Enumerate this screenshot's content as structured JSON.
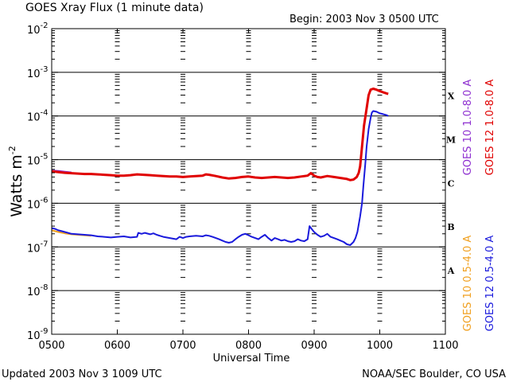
{
  "header": {
    "title": "GOES Xray Flux (1 minute data)",
    "begin": "Begin: 2003 Nov 3 0500 UTC"
  },
  "footer": {
    "updated": "Updated 2003 Nov  3 1009 UTC",
    "source": "NOAA/SEC Boulder, CO USA"
  },
  "colors": {
    "goes10_long": "#8e2fd0",
    "goes12_long": "#e00000",
    "goes10_short": "#f0a020",
    "goes12_short": "#1a1adc"
  },
  "chart_data": {
    "type": "line",
    "title": "GOES Xray Flux (1 minute data)",
    "xlabel": "Universal Time",
    "ylabel_base": "Watts m",
    "ylabel_exp": "-2",
    "y_scale": "log",
    "xlim": [
      500,
      1100
    ],
    "ylim": [
      1e-09,
      0.01
    ],
    "x_ticks": [
      "0500",
      "0600",
      "0700",
      "0800",
      "0900",
      "1000",
      "1100"
    ],
    "y_ticks": [
      {
        "base": "10",
        "exp": "-9"
      },
      {
        "base": "10",
        "exp": "-8"
      },
      {
        "base": "10",
        "exp": "-7"
      },
      {
        "base": "10",
        "exp": "-6"
      },
      {
        "base": "10",
        "exp": "-5"
      },
      {
        "base": "10",
        "exp": "-4"
      },
      {
        "base": "10",
        "exp": "-3"
      },
      {
        "base": "10",
        "exp": "-2"
      }
    ],
    "grid_levels": [
      1e-08,
      1e-07,
      1e-06,
      1e-05,
      0.0001,
      0.001
    ],
    "flare_classes": [
      {
        "label": "A",
        "y": 3e-08
      },
      {
        "label": "B",
        "y": 3e-07
      },
      {
        "label": "C",
        "y": 3e-06
      },
      {
        "label": "M",
        "y": 3e-05
      },
      {
        "label": "X",
        "y": 0.0003
      }
    ],
    "legend": [
      {
        "text": "GOES 10 1.0-8.0 A",
        "color": "#8e2fd0",
        "group": "upper",
        "order": 0
      },
      {
        "text": "GOES 12 1.0-8.0 A",
        "color": "#e00000",
        "group": "upper",
        "order": 1
      },
      {
        "text": "GOES 10 0.5-4.0 A",
        "color": "#f0a020",
        "group": "lower",
        "order": 0
      },
      {
        "text": "GOES 12 0.5-4.0 A",
        "color": "#1a1adc",
        "group": "lower",
        "order": 1
      }
    ],
    "series": [
      {
        "name": "GOES 10 0.5-4.0 A",
        "color": "#f0a020",
        "width": 2,
        "x": [
          500,
          510,
          520,
          530,
          540,
          550,
          560
        ],
        "y": [
          2.4e-07,
          2.2e-07,
          2.05e-07,
          1.95e-07,
          1.9e-07,
          1.85e-07,
          1.8e-07
        ]
      },
      {
        "name": "GOES 12 0.5-4.0 A",
        "color": "#1a1adc",
        "width": 2,
        "x": [
          500,
          505,
          510,
          515,
          520,
          525,
          530,
          540,
          550,
          560,
          570,
          580,
          590,
          600,
          610,
          620,
          630,
          632,
          637,
          642,
          650,
          655,
          660,
          665,
          670,
          680,
          690,
          695,
          700,
          705,
          710,
          720,
          730,
          735,
          740,
          745,
          750,
          755,
          760,
          765,
          770,
          775,
          780,
          785,
          790,
          795,
          800,
          805,
          810,
          815,
          820,
          825,
          830,
          835,
          840,
          845,
          850,
          855,
          860,
          865,
          870,
          875,
          880,
          885,
          890,
          893,
          897,
          900,
          905,
          910,
          915,
          920,
          925,
          930,
          935,
          940,
          945,
          950,
          955,
          960,
          963,
          966,
          970,
          973,
          975,
          978,
          980,
          983,
          986,
          988,
          990,
          995,
          1000,
          1005,
          1010,
          1013
        ],
        "y": [
          2.7e-07,
          2.6e-07,
          2.4e-07,
          2.3e-07,
          2.2e-07,
          2.1e-07,
          2e-07,
          1.95e-07,
          1.9e-07,
          1.85e-07,
          1.75e-07,
          1.7e-07,
          1.65e-07,
          1.7e-07,
          1.75e-07,
          1.65e-07,
          1.7e-07,
          2.1e-07,
          2e-07,
          2.1e-07,
          1.95e-07,
          2.05e-07,
          1.9e-07,
          1.8e-07,
          1.7e-07,
          1.6e-07,
          1.5e-07,
          1.7e-07,
          1.6e-07,
          1.7e-07,
          1.75e-07,
          1.8e-07,
          1.75e-07,
          1.85e-07,
          1.8e-07,
          1.7e-07,
          1.6e-07,
          1.5e-07,
          1.4e-07,
          1.3e-07,
          1.25e-07,
          1.3e-07,
          1.5e-07,
          1.7e-07,
          1.9e-07,
          2e-07,
          1.85e-07,
          1.7e-07,
          1.6e-07,
          1.5e-07,
          1.7e-07,
          1.9e-07,
          1.6e-07,
          1.4e-07,
          1.6e-07,
          1.5e-07,
          1.4e-07,
          1.45e-07,
          1.35e-07,
          1.3e-07,
          1.35e-07,
          1.5e-07,
          1.4e-07,
          1.35e-07,
          1.5e-07,
          3e-07,
          2.5e-07,
          2.2e-07,
          1.9e-07,
          1.7e-07,
          1.8e-07,
          2e-07,
          1.7e-07,
          1.6e-07,
          1.5e-07,
          1.4e-07,
          1.3e-07,
          1.15e-07,
          1.1e-07,
          1.3e-07,
          1.6e-07,
          2.2e-07,
          5e-07,
          1e-06,
          2.5e-06,
          8e-06,
          2e-05,
          5e-05,
          9e-05,
          0.00012,
          0.00013,
          0.000125,
          0.000115,
          0.00011,
          0.000105,
          0.0001
        ]
      },
      {
        "name": "GOES 10 1.0-8.0 A",
        "color": "#8e2fd0",
        "width": 2,
        "x": [
          500,
          510,
          520,
          530
        ],
        "y": [
          5.6e-06,
          5.5e-06,
          5.3e-06,
          5.1e-06
        ]
      },
      {
        "name": "GOES 12 1.0-8.0 A",
        "color": "#e00000",
        "width": 3,
        "x": [
          500,
          510,
          520,
          530,
          540,
          550,
          560,
          570,
          580,
          590,
          600,
          610,
          620,
          630,
          640,
          650,
          660,
          670,
          680,
          690,
          700,
          710,
          720,
          730,
          735,
          740,
          750,
          760,
          770,
          780,
          790,
          800,
          810,
          820,
          830,
          840,
          850,
          860,
          870,
          880,
          890,
          895,
          900,
          905,
          910,
          920,
          930,
          940,
          950,
          955,
          960,
          965,
          968,
          970,
          973,
          976,
          980,
          983,
          986,
          990,
          995,
          1000,
          1005,
          1010,
          1013
        ],
        "y": [
          5.4e-06,
          5.2e-06,
          5e-06,
          4.9e-06,
          4.8e-06,
          4.7e-06,
          4.7e-06,
          4.6e-06,
          4.5e-06,
          4.4e-06,
          4.3e-06,
          4.3e-06,
          4.4e-06,
          4.6e-06,
          4.5e-06,
          4.4e-06,
          4.3e-06,
          4.2e-06,
          4.1e-06,
          4.1e-06,
          4e-06,
          4.1e-06,
          4.2e-06,
          4.3e-06,
          4.6e-06,
          4.5e-06,
          4.2e-06,
          3.9e-06,
          3.7e-06,
          3.8e-06,
          4e-06,
          4.1e-06,
          3.9e-06,
          3.8e-06,
          3.9e-06,
          4e-06,
          3.9e-06,
          3.8e-06,
          3.9e-06,
          4.1e-06,
          4.3e-06,
          4.9e-06,
          4.3e-06,
          4e-06,
          3.9e-06,
          4.2e-06,
          4e-06,
          3.8e-06,
          3.6e-06,
          3.4e-06,
          3.5e-06,
          4e-06,
          5e-06,
          7e-06,
          2e-05,
          6e-05,
          0.00015,
          0.0003,
          0.0004,
          0.00042,
          0.0004,
          0.00037,
          0.00035,
          0.00033,
          0.00032
        ]
      }
    ]
  }
}
